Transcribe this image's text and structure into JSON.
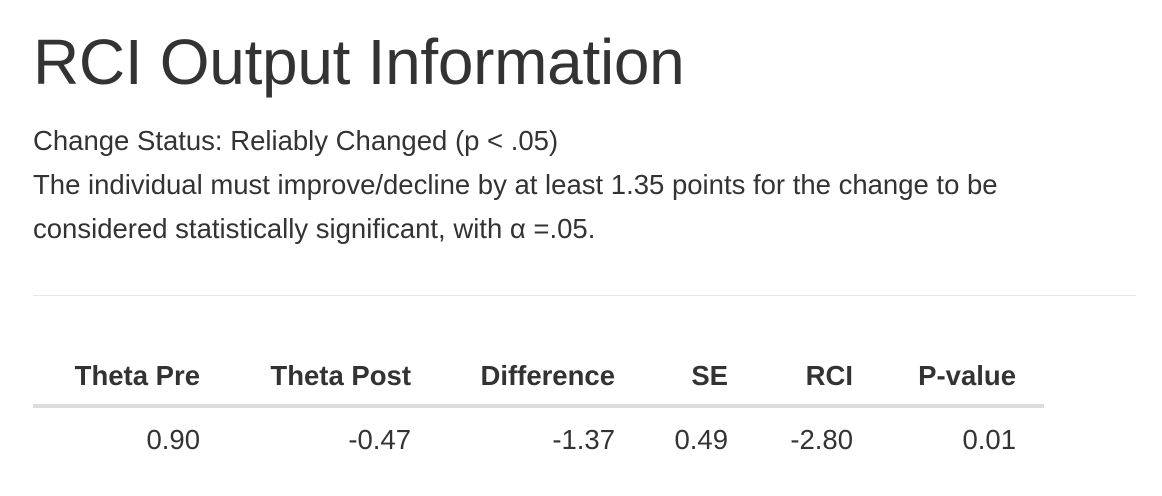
{
  "page": {
    "title": "RCI Output Information",
    "status": "Change Status: Reliably Changed (p < .05)",
    "description_line1": "The individual must improve/decline by at least 1.35 points for the change to be",
    "description_line2": "considered statistically significant, with α =.05."
  },
  "table": {
    "headers": [
      "Theta Pre",
      "Theta Post",
      "Difference",
      "SE",
      "RCI",
      "P-value"
    ],
    "rows": [
      [
        "0.90",
        "-0.47",
        "-1.37",
        "0.49",
        "-2.80",
        "0.01"
      ]
    ]
  }
}
